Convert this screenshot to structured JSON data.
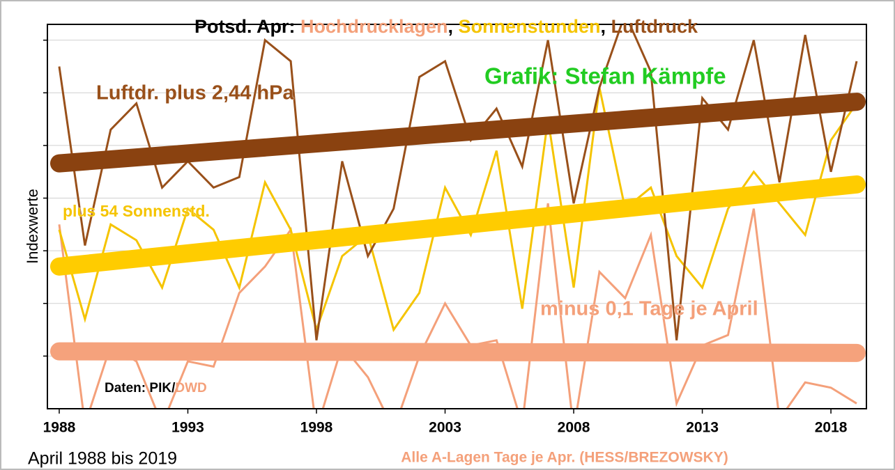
{
  "chart_data": {
    "type": "line",
    "title_lead": "Potsd. Apr:",
    "title_separator": ",",
    "subtitle": "April 1988 bis 2019",
    "ylabel": "Indexwerte",
    "xlabel": "Alle A-Lagen Tage je Apr. (HESS/BREZOWSKY)",
    "credit": "Grafik: Stefan Kämpfe",
    "source": [
      "Daten: PIK/",
      "DWD"
    ],
    "source_colors": [
      "#000000",
      "#f4a07a"
    ],
    "annotations": [
      {
        "text": "Luftdr. plus 2,44 hPa",
        "color": "#99501a"
      },
      {
        "text": "plus 54 Sonnenstd.",
        "color": "#f5c400"
      },
      {
        "text": "minus 0,1 Tage je April",
        "color": "#f4a07a"
      }
    ],
    "x": [
      1988,
      1989,
      1990,
      1991,
      1992,
      1993,
      1994,
      1995,
      1996,
      1997,
      1998,
      1999,
      2000,
      2001,
      2002,
      2003,
      2004,
      2005,
      2006,
      2007,
      2008,
      2009,
      2010,
      2011,
      2012,
      2013,
      2014,
      2015,
      2016,
      2017,
      2018,
      2019
    ],
    "xlim": [
      1987.54,
      2019.38
    ],
    "xticks": [
      1988,
      1993,
      1998,
      2003,
      2008,
      2013,
      2018
    ],
    "ylim": [
      0,
      7.3
    ],
    "ygrid": [
      1,
      2,
      3,
      4,
      5,
      6,
      7
    ],
    "grid": true,
    "series": [
      {
        "name": "Hochdrucklagen",
        "color": "#f4a07a",
        "trend_color": "#f5a27c",
        "values": [
          3.5,
          -0.3,
          1.2,
          0.9,
          -0.3,
          0.9,
          0.8,
          2.2,
          2.7,
          3.4,
          -0.4,
          1.2,
          0.6,
          -0.4,
          1.0,
          2.0,
          1.2,
          1.3,
          -0.3,
          3.9,
          -0.4,
          2.6,
          2.1,
          3.3,
          0.1,
          1.2,
          1.4,
          3.8,
          -0.2,
          0.5,
          0.4,
          0.1
        ],
        "trend": [
          1.09,
          1.06
        ]
      },
      {
        "name": "Sonnenstunden",
        "color": "#f5c400",
        "trend_color": "#ffcc00",
        "values": [
          3.4,
          1.7,
          3.5,
          3.2,
          2.3,
          3.8,
          3.4,
          2.3,
          4.3,
          3.4,
          1.5,
          2.9,
          3.3,
          1.5,
          2.2,
          4.2,
          3.3,
          4.9,
          1.9,
          5.5,
          2.3,
          6.1,
          3.8,
          4.2,
          2.9,
          2.3,
          3.8,
          4.5,
          3.9,
          3.3,
          5.1,
          5.8
        ],
        "trend": [
          2.7,
          4.26
        ]
      },
      {
        "name": "Luftdruck",
        "color": "#99501a",
        "trend_color": "#8a4210",
        "values": [
          6.5,
          3.1,
          5.3,
          5.8,
          4.2,
          4.7,
          4.2,
          4.4,
          7.0,
          6.6,
          1.3,
          4.7,
          2.9,
          3.8,
          6.3,
          6.6,
          5.1,
          5.7,
          4.6,
          7.0,
          3.9,
          6.1,
          7.5,
          6.4,
          1.3,
          5.9,
          5.3,
          7.0,
          4.3,
          7.1,
          4.5,
          6.6
        ],
        "trend": [
          4.66,
          5.83
        ]
      }
    ]
  }
}
